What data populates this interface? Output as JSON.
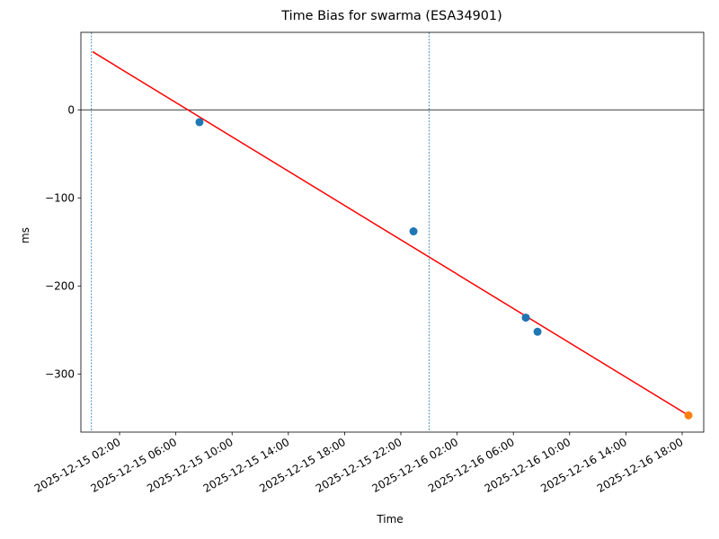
{
  "chart_data": {
    "type": "scatter-fit",
    "title": "Time Bias for swarma (ESA34901)",
    "x_label": "Time",
    "y_label": "ms",
    "xlim": [
      "2025-12-14 23:15",
      "2025-12-16 19:32"
    ],
    "xticks": [
      "2025-12-15 02:00",
      "2025-12-15 06:00",
      "2025-12-15 10:00",
      "2025-12-15 14:00",
      "2025-12-15 18:00",
      "2025-12-15 22:00",
      "2025-12-16 02:00",
      "2025-12-16 06:00",
      "2025-12-16 10:00",
      "2025-12-16 14:00",
      "2025-12-16 18:00"
    ],
    "ylim": [
      -366,
      88
    ],
    "yticks": [
      {
        "value": 0,
        "label": "0"
      },
      {
        "value": -100,
        "label": "−100"
      },
      {
        "value": -200,
        "label": "−200"
      },
      {
        "value": -300,
        "label": "−300"
      }
    ],
    "hline": 0,
    "vlines": [
      "2025-12-15 00:00",
      "2025-12-16 00:00"
    ],
    "series": [
      {
        "type": "scatter",
        "color": "#1f77b4",
        "x": [
          "2025-12-15 07:41",
          "2025-12-15 22:54",
          "2025-12-16 06:53",
          "2025-12-16 07:43"
        ],
        "values": [
          -14,
          -138,
          -236,
          -252
        ]
      },
      {
        "type": "scatter",
        "color": "#ff7f0e",
        "x": [
          "2025-12-16 18:27"
        ],
        "values": [
          -347
        ]
      },
      {
        "type": "line",
        "color": "#ff0000",
        "x": [
          "2025-12-15 00:05",
          "2025-12-16 18:27"
        ],
        "values": [
          66,
          -347
        ]
      }
    ]
  }
}
